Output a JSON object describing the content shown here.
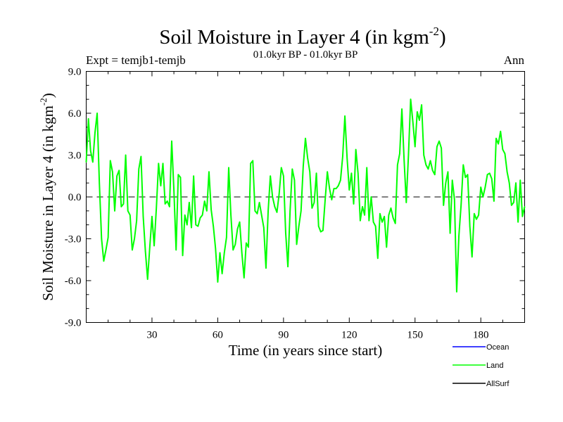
{
  "chart_data": {
    "type": "line",
    "title": "Soil Moisture in Layer 4 (in kgm",
    "title_sup": "-2",
    "title_close": ")",
    "subtitle_left": "Expt = temjb1-temjb",
    "subtitle_center": "01.0kyr BP - 01.0kyr BP",
    "subtitle_right": "Ann",
    "xlabel": "Time (in years since start)",
    "ylabel": "Soil Moisture in Layer 4 (in kgm",
    "ylabel_sup": "-2",
    "ylabel_close": ")",
    "xlim": [
      0,
      200
    ],
    "ylim": [
      -9,
      9
    ],
    "x_ticks": [
      30,
      60,
      90,
      120,
      150,
      180
    ],
    "x_tick_labels": [
      "30",
      "60",
      "90",
      "120",
      "150",
      "180"
    ],
    "y_ticks": [
      -9,
      -6,
      -3,
      0,
      3,
      6,
      9
    ],
    "y_tick_labels": [
      "-9.0",
      "-6.0",
      "-3.0",
      "0.0",
      "3.0",
      "6.0",
      "9.0"
    ],
    "zero_line": true,
    "legend": [
      {
        "name": "Ocean",
        "color": "#0000ff"
      },
      {
        "name": "Land",
        "color": "#00ff00"
      },
      {
        "name": "AllSurf",
        "color": "#000000"
      }
    ],
    "series": [
      {
        "name": "Land",
        "color": "#00ff00",
        "x": [
          0,
          1,
          2,
          3,
          4,
          5,
          6,
          7,
          8,
          9,
          10,
          11,
          12,
          13,
          14,
          15,
          16,
          17,
          18,
          19,
          20,
          21,
          22,
          23,
          24,
          25,
          26,
          27,
          28,
          29,
          30,
          31,
          32,
          33,
          34,
          35,
          36,
          37,
          38,
          39,
          40,
          41,
          42,
          43,
          44,
          45,
          46,
          47,
          48,
          49,
          50,
          51,
          52,
          53,
          54,
          55,
          56,
          57,
          58,
          59,
          60,
          61,
          62,
          63,
          64,
          65,
          66,
          67,
          68,
          69,
          70,
          71,
          72,
          73,
          74,
          75,
          76,
          77,
          78,
          79,
          80,
          81,
          82,
          83,
          84,
          85,
          86,
          87,
          88,
          89,
          90,
          91,
          92,
          93,
          94,
          95,
          96,
          97,
          98,
          99,
          100,
          101,
          102,
          103,
          104,
          105,
          106,
          107,
          108,
          109,
          110,
          111,
          112,
          113,
          114,
          115,
          116,
          117,
          118,
          119,
          120,
          121,
          122,
          123,
          124,
          125,
          126,
          127,
          128,
          129,
          130,
          131,
          132,
          133,
          134,
          135,
          136,
          137,
          138,
          139,
          140,
          141,
          142,
          143,
          144,
          145,
          146,
          147,
          148,
          149,
          150,
          151,
          152,
          153,
          154,
          155,
          156,
          157,
          158,
          159,
          160,
          161,
          162,
          163,
          164,
          165,
          166,
          167,
          168,
          169,
          170,
          171,
          172,
          173,
          174,
          175,
          176,
          177,
          178,
          179,
          180,
          181,
          182,
          183,
          184,
          185,
          186,
          187,
          188,
          189,
          190,
          191,
          192,
          193,
          194,
          195,
          196,
          197,
          198,
          199,
          200
        ],
        "values": [
          2.5,
          5.6,
          3.3,
          2.5,
          4.6,
          6.0,
          1.0,
          -3.0,
          -4.6,
          -3.8,
          -2.9,
          2.6,
          1.8,
          -1.0,
          1.5,
          1.9,
          -0.7,
          -0.5,
          3.0,
          -1.0,
          -1.3,
          -3.8,
          -3.0,
          -1.7,
          2.0,
          2.9,
          -1.4,
          -3.9,
          -5.9,
          -3.6,
          -1.4,
          -3.5,
          -0.8,
          2.4,
          0.8,
          2.4,
          -0.5,
          -0.3,
          -0.7,
          4.0,
          0.5,
          -3.8,
          1.6,
          1.4,
          -4.2,
          -1.3,
          -2.0,
          -0.4,
          -2.2,
          1.5,
          -2.0,
          -2.1,
          -1.5,
          -1.3,
          -0.3,
          -1.0,
          1.8,
          -0.9,
          -2.1,
          -3.7,
          -6.1,
          -4.0,
          -5.5,
          -4.0,
          -2.9,
          2.1,
          -1.3,
          -3.8,
          -3.4,
          -2.3,
          -1.8,
          -4.0,
          -5.8,
          -3.3,
          -3.6,
          2.4,
          2.6,
          -1.0,
          -1.2,
          -0.4,
          -1.3,
          -2.2,
          -5.1,
          -1.0,
          1.5,
          0.0,
          -0.7,
          -1.1,
          0.2,
          2.1,
          1.5,
          -2.6,
          -5.0,
          -1.0,
          2.0,
          1.2,
          -3.4,
          -2.1,
          -1.0,
          2.2,
          4.2,
          2.8,
          1.8,
          -0.8,
          -0.4,
          1.7,
          -2.1,
          -2.5,
          -2.4,
          -0.2,
          1.8,
          0.6,
          -0.2,
          0.6,
          0.6,
          0.8,
          1.2,
          2.9,
          5.8,
          2.8,
          0.5,
          1.7,
          -0.5,
          3.4,
          1.7,
          -1.7,
          -0.7,
          -1.3,
          2.1,
          -1.7,
          0.0,
          -1.8,
          -2.1,
          -4.4,
          -1.2,
          -1.8,
          -1.4,
          -3.6,
          -1.3,
          -0.8,
          -1.5,
          -1.9,
          2.3,
          3.1,
          6.3,
          2.7,
          -0.4,
          3.0,
          7.0,
          5.4,
          3.6,
          6.1,
          5.5,
          6.6,
          3.0,
          2.3,
          2.0,
          2.6,
          1.9,
          1.6,
          3.6,
          4.0,
          3.5,
          -0.6,
          1.0,
          1.8,
          -2.6,
          1.2,
          -0.2,
          -6.8,
          -2.8,
          -0.6,
          2.3,
          1.4,
          1.6,
          -2.1,
          -4.3,
          -1.2,
          -1.6,
          -1.3,
          0.7,
          0.0,
          0.7,
          1.6,
          1.7,
          1.3,
          -0.3,
          4.2,
          3.8,
          4.7,
          3.4,
          3.1,
          1.8,
          1.0,
          -0.6,
          -0.4,
          1.0,
          -1.8,
          1.2,
          -1.4,
          -0.7
        ]
      }
    ]
  }
}
